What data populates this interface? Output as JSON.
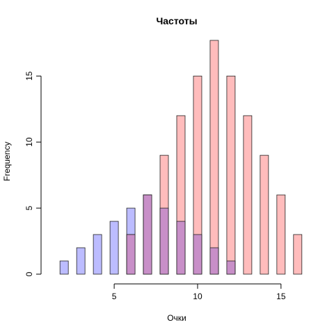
{
  "chart_data": {
    "type": "bar",
    "title": "Частоты",
    "xlabel": "Очки",
    "ylabel": "Frequency",
    "xlim": [
      1.2,
      16.3
    ],
    "ylim": [
      0,
      17.7
    ],
    "xticks": [
      5,
      10,
      15
    ],
    "yticks": [
      0,
      5,
      10,
      15
    ],
    "bar_width": 0.5,
    "grid": false,
    "series": [
      {
        "color": "#bcbcff",
        "x": [
          2,
          3,
          4,
          5,
          6,
          7,
          8,
          9,
          10,
          11,
          12
        ],
        "values": [
          1,
          2,
          3,
          4,
          5,
          6,
          5,
          4,
          3,
          2,
          1
        ]
      },
      {
        "color": "#ffbcbc",
        "x": [
          6,
          7,
          8,
          9,
          10,
          11,
          12,
          13,
          14,
          15,
          16
        ],
        "values": [
          3,
          6,
          9,
          12,
          15,
          18,
          15,
          12,
          9,
          6,
          3
        ]
      }
    ],
    "overlap_color": "#c88fc8"
  }
}
